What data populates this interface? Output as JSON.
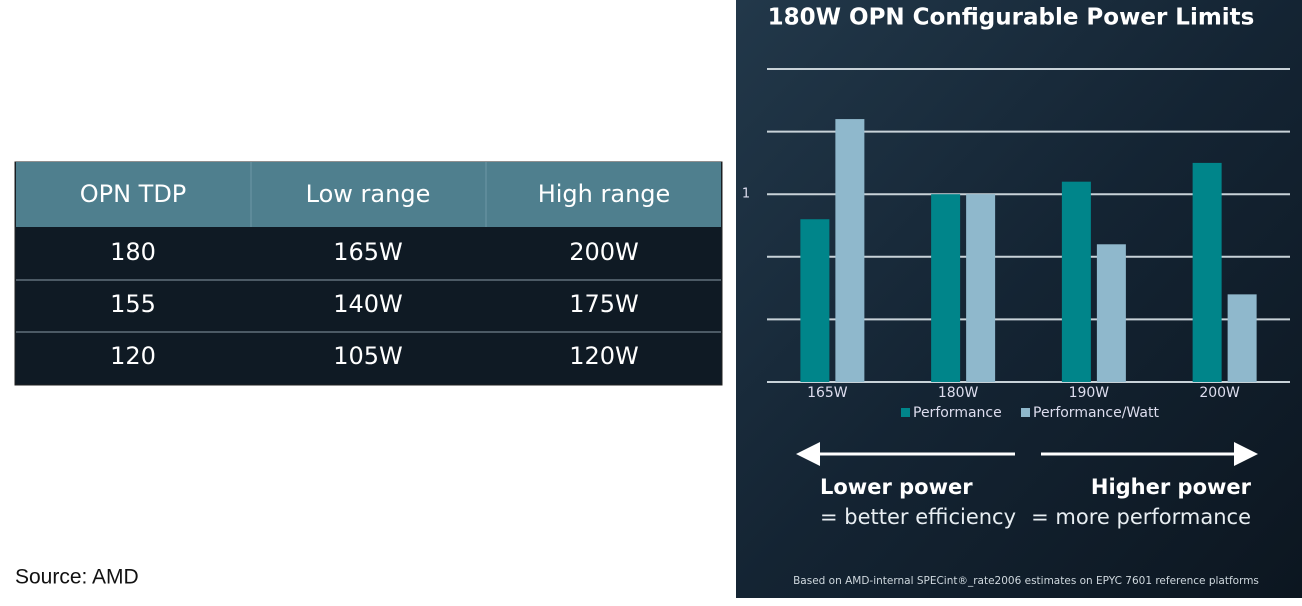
{
  "table": {
    "header": [
      "OPN TDP",
      "Low range",
      "High range"
    ],
    "rows": [
      [
        "180",
        "165W",
        "200W"
      ],
      [
        "155",
        "140W",
        "175W"
      ],
      [
        "120",
        "105W",
        "120W"
      ]
    ]
  },
  "source": "Source: AMD",
  "chart_data": {
    "type": "bar",
    "title": "180W OPN Configurable Power Limits",
    "categories": [
      "165W",
      "180W",
      "190W",
      "200W"
    ],
    "series": [
      {
        "name": "Performance",
        "color": "#00858a",
        "values": [
          0.98,
          1.0,
          1.01,
          1.025
        ]
      },
      {
        "name": "Performance/Watt",
        "color": "#8fb8cc",
        "values": [
          1.06,
          1.0,
          0.96,
          0.92
        ]
      }
    ],
    "ylim": [
      0.85,
      1.1
    ],
    "yticks": [
      1
    ],
    "unlabeled_gridlines": [
      0.9,
      0.95,
      1.05,
      1.1
    ],
    "grid": true,
    "annotations": {
      "left_title": "Lower power",
      "left_text": "= better efficiency",
      "right_title": "Higher power",
      "right_text": "= more performance"
    },
    "footnote": "Based on AMD-internal SPECint®_rate2006 estimates on EPYC 7601 reference platforms"
  }
}
